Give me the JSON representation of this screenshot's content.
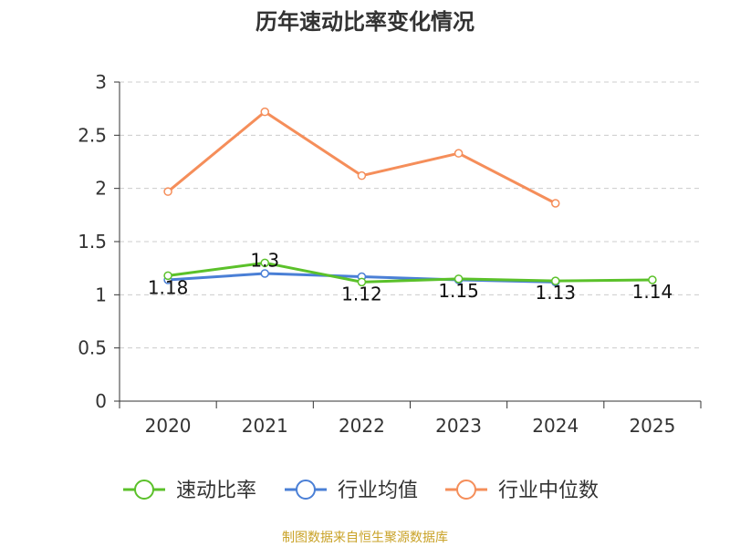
{
  "chart_data": {
    "type": "line",
    "title": "历年速动比率变化情况",
    "categories": [
      "2020",
      "2021",
      "2022",
      "2023",
      "2024",
      "2025"
    ],
    "ylim": [
      0,
      3
    ],
    "yticks": [
      "0",
      "0.5",
      "1",
      "1.5",
      "2",
      "2.5",
      "3"
    ],
    "grid": true,
    "legend_position": "bottom",
    "series": [
      {
        "name": "速动比率",
        "color": "#5bc12a",
        "values": [
          1.18,
          1.3,
          1.12,
          1.15,
          1.13,
          1.14
        ],
        "labels": [
          "1.18",
          "1.3",
          "1.12",
          "1.15",
          "1.13",
          "1.14"
        ]
      },
      {
        "name": "行业均值",
        "color": "#4a7fd6",
        "values": [
          1.14,
          1.2,
          1.17,
          1.14,
          1.12,
          null
        ]
      },
      {
        "name": "行业中位数",
        "color": "#f58e5a",
        "values": [
          1.97,
          2.72,
          2.12,
          2.33,
          1.86,
          null
        ]
      }
    ]
  },
  "footer": {
    "source": "制图数据来自恒生聚源数据库",
    "source_color": "#c9a227"
  }
}
